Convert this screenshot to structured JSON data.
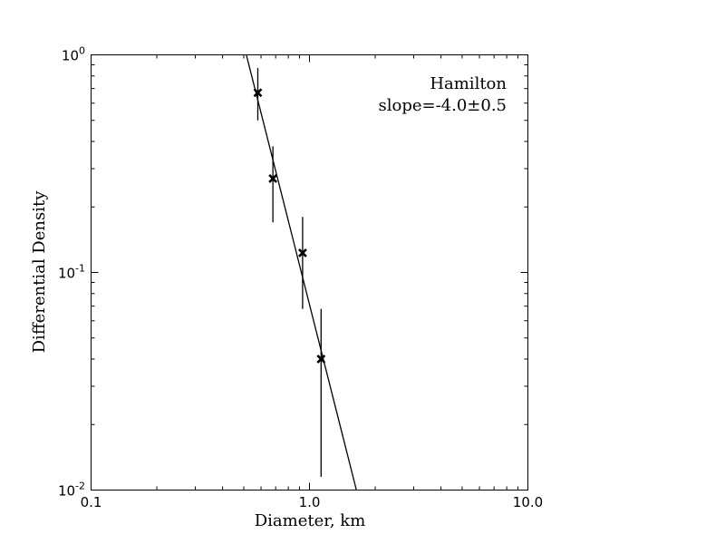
{
  "chart_data": {
    "type": "scatter",
    "xlabel": "Diameter, km",
    "ylabel": "Differential Density",
    "xscale": "log",
    "yscale": "log",
    "xlim": [
      0.1,
      10.0
    ],
    "ylim": [
      0.01,
      1.0
    ],
    "x_ticks": [
      {
        "value": 0.1,
        "label": "0.1"
      },
      {
        "value": 1.0,
        "label": "1.0"
      },
      {
        "value": 10.0,
        "label": "10.0"
      }
    ],
    "y_ticks": [
      {
        "value": 0.01,
        "base": "10",
        "exp": "-2"
      },
      {
        "value": 0.1,
        "base": "10",
        "exp": "-1"
      },
      {
        "value": 1.0,
        "base": "10",
        "exp": "0"
      }
    ],
    "annotation": {
      "line1": "Hamilton",
      "line2": "slope=-4.0±0.5"
    },
    "points": [
      {
        "x": 0.58,
        "y": 0.67,
        "y_low": 0.5,
        "y_high": 0.87
      },
      {
        "x": 0.68,
        "y": 0.27,
        "y_low": 0.17,
        "y_high": 0.38
      },
      {
        "x": 0.93,
        "y": 0.123,
        "y_low": 0.068,
        "y_high": 0.18
      },
      {
        "x": 1.13,
        "y": 0.04,
        "y_low": 0.0115,
        "y_high": 0.068
      }
    ],
    "fit_line": {
      "x": [
        0.514,
        1.64
      ],
      "y": [
        1.0,
        0.01
      ]
    },
    "grid": false,
    "legend": "none"
  }
}
